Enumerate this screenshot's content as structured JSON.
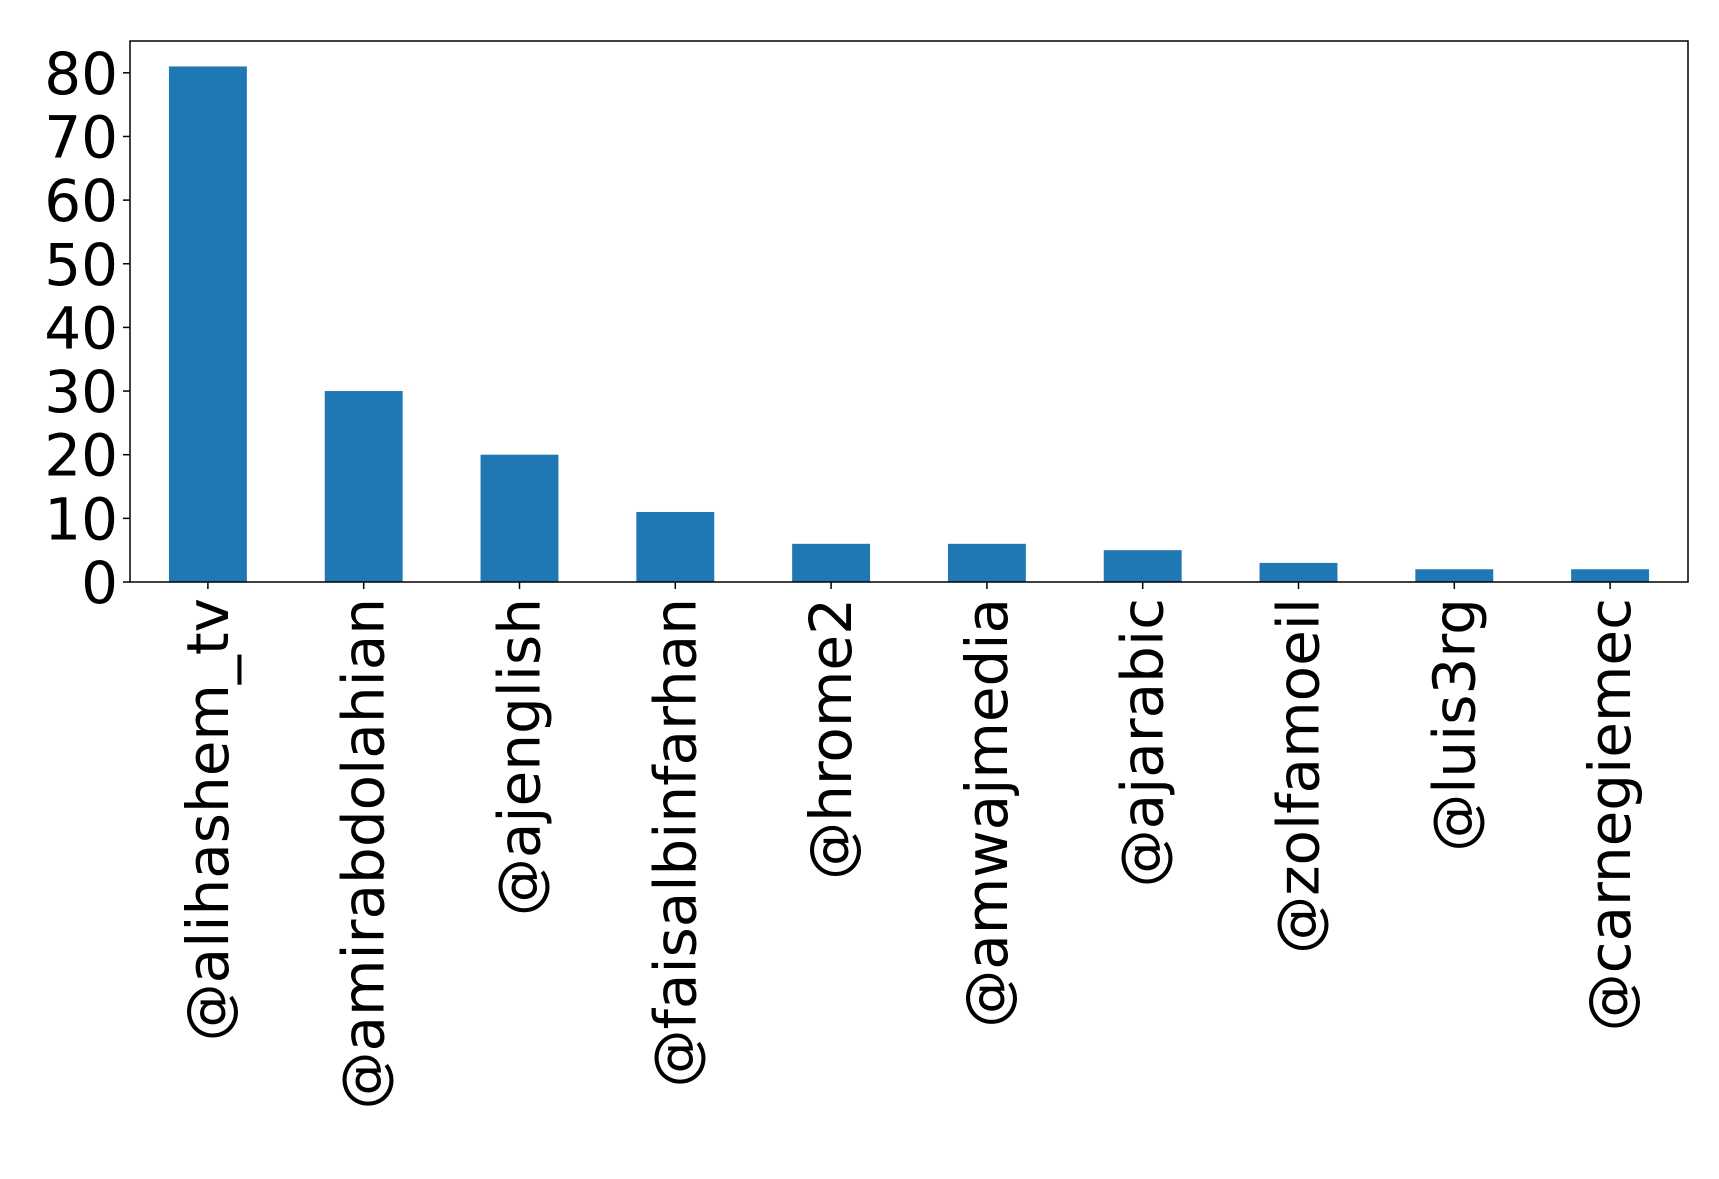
{
  "chart_data": {
    "type": "bar",
    "categories": [
      "@alihashem_tv",
      "@amirabdolahian",
      "@ajenglish",
      "@faisalbinfarhan",
      "@hrome2",
      "@amwajmedia",
      "@ajarabic",
      "@zolfamoeil",
      "@luis3rg",
      "@carnegiemec"
    ],
    "values": [
      81,
      30,
      20,
      11,
      6,
      6,
      5,
      3,
      2,
      2
    ],
    "title": "",
    "xlabel": "",
    "ylabel": "",
    "ylim": [
      0,
      85
    ],
    "yticks": [
      0,
      10,
      20,
      30,
      40,
      50,
      60,
      70,
      80
    ],
    "grid": false,
    "bar_color": "#1f77b4"
  }
}
